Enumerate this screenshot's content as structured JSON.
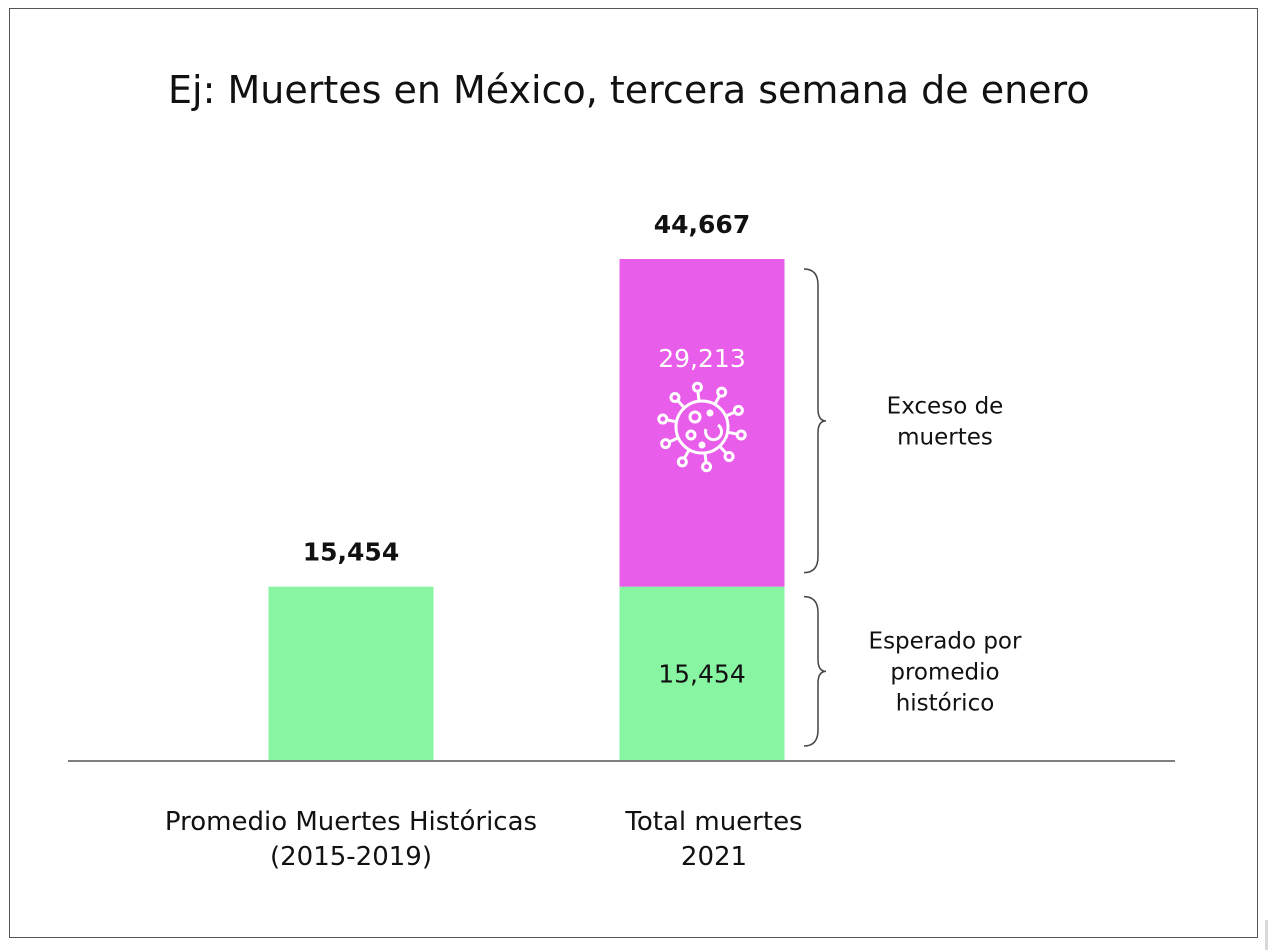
{
  "chart_data": {
    "type": "bar",
    "stacked": true,
    "title": "Ej: Muertes en México, tercera semana de enero",
    "categories": [
      {
        "lines": [
          "Promedio Muertes Históricas",
          "(2015-2019)"
        ]
      },
      {
        "lines": [
          "Total muertes",
          "2021"
        ]
      }
    ],
    "totals": [
      "15,454",
      "44,667"
    ],
    "series": [
      {
        "name": "",
        "color": "#88f5a2",
        "values": [
          15454,
          15454
        ],
        "labels": [
          "",
          "15,454"
        ],
        "label_color": "#111111"
      },
      {
        "name": "",
        "color": "#e85eea",
        "values": [
          0,
          29213
        ],
        "labels": [
          "",
          "29,213"
        ],
        "label_color": "#ffffff"
      }
    ],
    "ylim": [
      0,
      44667
    ],
    "annotations": [
      {
        "lines": [
          "Exceso de",
          "muertes"
        ],
        "spans_series": 1
      },
      {
        "lines": [
          "Esperado por",
          "promedio",
          "histórico"
        ],
        "spans_series": 0
      }
    ],
    "icon": "virus-icon",
    "grid": false,
    "legend": "none"
  }
}
